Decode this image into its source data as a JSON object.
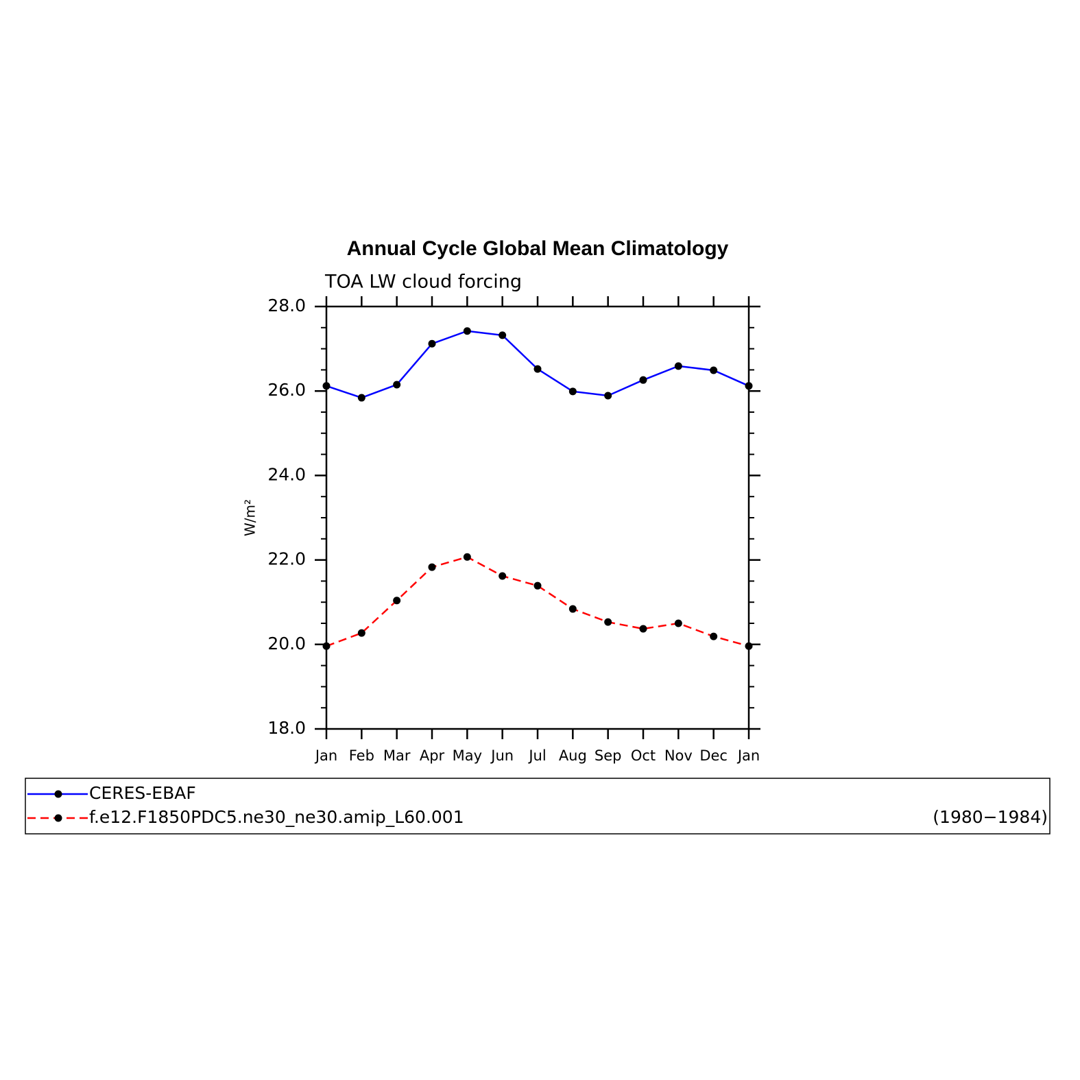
{
  "chart_data": {
    "type": "line",
    "title": "Annual Cycle Global Mean Climatology",
    "subtitle": "TOA LW cloud forcing",
    "y_label": "W/m²",
    "categories": [
      "Jan",
      "Feb",
      "Mar",
      "Apr",
      "May",
      "Jun",
      "Jul",
      "Aug",
      "Sep",
      "Oct",
      "Nov",
      "Dec",
      "Jan"
    ],
    "series": [
      {
        "name": "CERES-EBAF",
        "color": "#0000ff",
        "dash": "solid",
        "values": [
          26.12,
          25.84,
          26.15,
          27.12,
          27.42,
          27.32,
          26.52,
          25.99,
          25.89,
          26.26,
          26.59,
          26.49,
          26.12
        ]
      },
      {
        "name": "f.e12.F1850PDC5.ne30_ne30.amip_L60.001",
        "color": "#ff0000",
        "dash": "dashed",
        "annotation": "(1980−1984)",
        "values": [
          19.96,
          20.27,
          21.04,
          21.83,
          22.07,
          21.62,
          21.39,
          20.84,
          20.53,
          20.37,
          20.5,
          20.19,
          19.96
        ]
      }
    ],
    "ylim": [
      18,
      28
    ],
    "yticks": [
      {
        "value": 18,
        "label": "18.0"
      },
      {
        "value": 20,
        "label": "20.0"
      },
      {
        "value": 22,
        "label": "22.0"
      },
      {
        "value": 24,
        "label": "24.0"
      },
      {
        "value": 26,
        "label": "26.0"
      },
      {
        "value": 28,
        "label": "28.0"
      }
    ],
    "yminorticks": [
      18.5,
      19,
      19.5,
      20.5,
      21,
      21.5,
      22.5,
      23,
      23.5,
      24.5,
      25,
      25.5,
      26.5,
      27,
      27.5
    ],
    "grid": false
  }
}
